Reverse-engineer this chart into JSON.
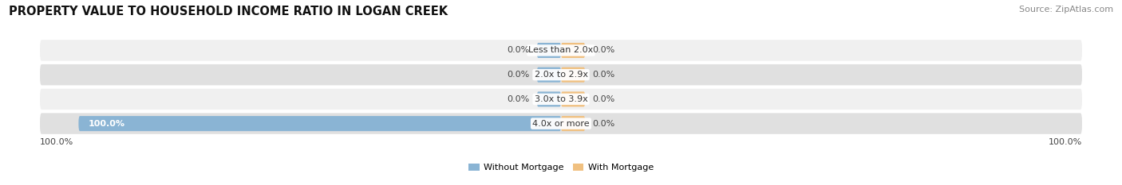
{
  "title": "PROPERTY VALUE TO HOUSEHOLD INCOME RATIO IN LOGAN CREEK",
  "source": "Source: ZipAtlas.com",
  "categories": [
    "Less than 2.0x",
    "2.0x to 2.9x",
    "3.0x to 3.9x",
    "4.0x or more"
  ],
  "without_mortgage": [
    0.0,
    0.0,
    0.0,
    100.0
  ],
  "with_mortgage": [
    0.0,
    0.0,
    0.0,
    0.0
  ],
  "color_without": "#8ab4d4",
  "color_with": "#f0c080",
  "bg_row_even": "#f0f0f0",
  "bg_row_odd": "#e0e0e0",
  "max_val": 100.0,
  "left_axis_label": "100.0%",
  "right_axis_label": "100.0%",
  "legend_without": "Without Mortgage",
  "legend_with": "With Mortgage",
  "title_fontsize": 10.5,
  "source_fontsize": 8,
  "label_fontsize": 8,
  "pct_fontsize": 8,
  "min_stub": 5.0
}
